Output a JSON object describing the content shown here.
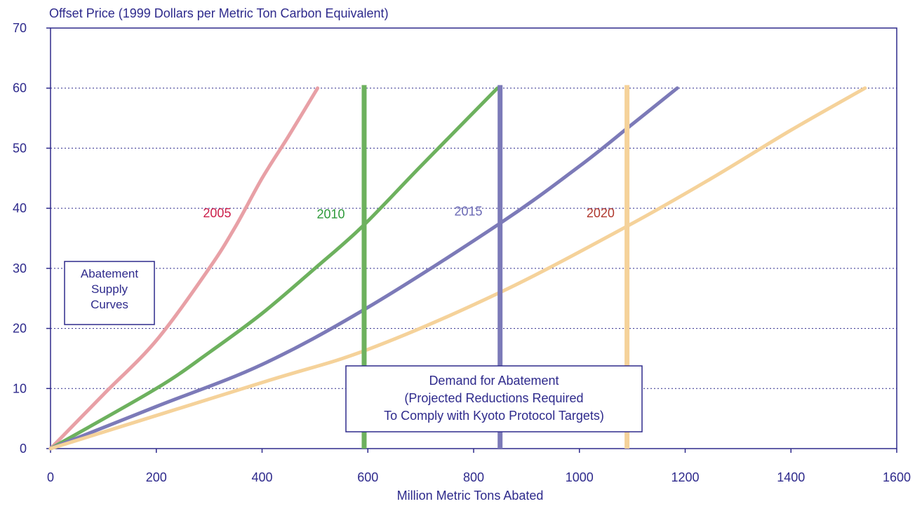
{
  "chart_data": {
    "type": "line",
    "title": "Offset Price (1999 Dollars per Metric Ton Carbon Equivalent)",
    "xlabel": "Million Metric Tons Abated",
    "ylabel": "",
    "xlim": [
      0,
      1600
    ],
    "ylim": [
      0,
      70
    ],
    "xticks": [
      0,
      200,
      400,
      600,
      800,
      1000,
      1200,
      1400,
      1600
    ],
    "yticks": [
      0,
      10,
      20,
      30,
      40,
      50,
      60,
      70
    ],
    "grid": "horizontal dotted",
    "series": [
      {
        "name": "2005",
        "color": "#e8a0a6",
        "x": [
          0,
          100,
          200,
          300,
          350,
          400,
          450,
          505
        ],
        "y": [
          0,
          9,
          18,
          30,
          37,
          45,
          52,
          60
        ]
      },
      {
        "name": "2010",
        "color": "#6db15e",
        "x": [
          0,
          200,
          300,
          400,
          500,
          590,
          700,
          845
        ],
        "y": [
          0,
          10,
          16,
          22.5,
          30,
          37,
          47,
          60
        ]
      },
      {
        "name": "2015",
        "color": "#7c7ab8",
        "x": [
          0,
          200,
          400,
          600,
          850,
          1000,
          1100,
          1185
        ],
        "y": [
          0,
          7,
          14,
          23.5,
          37.5,
          47,
          54,
          60
        ]
      },
      {
        "name": "2020",
        "color": "#f5d29a",
        "x": [
          0,
          400,
          600,
          850,
          1090,
          1250,
          1400,
          1540
        ],
        "y": [
          0,
          11,
          16.5,
          26,
          37,
          45,
          53,
          60
        ]
      }
    ],
    "demand_lines": [
      {
        "year": "2010",
        "x": 593,
        "color": "#6db15e"
      },
      {
        "year": "2015",
        "x": 850,
        "color": "#7c7ab8"
      },
      {
        "year": "2020",
        "x": 1090,
        "color": "#f5d29a"
      }
    ],
    "curve_labels": [
      {
        "text": "2005",
        "x": 315,
        "y": 38.5,
        "color": "#cc1f4a"
      },
      {
        "text": "2010",
        "x": 530,
        "y": 38.3,
        "color": "#2e9a3a"
      },
      {
        "text": "2015",
        "x": 790,
        "y": 38.8,
        "color": "#6b6ab5"
      },
      {
        "text": "2020",
        "x": 1040,
        "y": 38.5,
        "color": "#b0392e"
      }
    ],
    "annotations": {
      "supply_box": [
        "Abatement",
        "Supply",
        "Curves"
      ],
      "demand_box": [
        "Demand for Abatement",
        "(Projected Reductions Required",
        "To Comply with Kyoto Protocol Targets)"
      ]
    }
  },
  "colors": {
    "axis": "#2e2a8c",
    "text": "#2e2a8c",
    "grid": "#2e2a8c"
  }
}
